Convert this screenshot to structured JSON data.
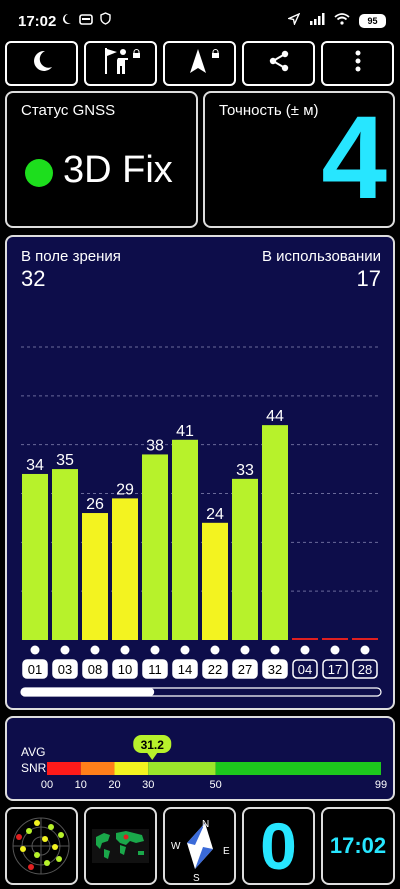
{
  "status_bar": {
    "time": "17:02",
    "battery": "95",
    "icons_left": [
      "moon-icon",
      "card-icon",
      "shield-icon"
    ],
    "icons_right": [
      "location-arrow-icon",
      "cell-signal-icon",
      "wifi-icon",
      "battery-icon"
    ]
  },
  "toolbar": {
    "buttons": [
      "night-mode",
      "navigate-person",
      "compass-arrow",
      "share",
      "menu"
    ]
  },
  "gnss": {
    "label": "Статус GNSS",
    "value": "3D Fix",
    "dot_color": "#1dde1d"
  },
  "accuracy": {
    "label": "Точность (± м)",
    "value": "4"
  },
  "sky": {
    "in_view_label": "В поле зрения",
    "in_view": "32",
    "in_use_label": "В использовании",
    "in_use": "17",
    "scroll_fraction": 0.37
  },
  "chart_data": {
    "type": "bar",
    "ylim": [
      0,
      60
    ],
    "grid": true,
    "categories": [
      "01",
      "03",
      "08",
      "10",
      "11",
      "14",
      "22",
      "27",
      "32",
      "04",
      "17",
      "28"
    ],
    "values": [
      34,
      35,
      26,
      29,
      38,
      41,
      24,
      33,
      44,
      0,
      0,
      0
    ],
    "value_labels": [
      "34",
      "35",
      "26",
      "29",
      "38",
      "41",
      "24",
      "33",
      "44",
      "",
      "",
      ""
    ],
    "colors": [
      "#b7f22b",
      "#b7f22b",
      "#f3f320",
      "#f3f320",
      "#b7f22b",
      "#b7f22b",
      "#f3f320",
      "#b7f22b",
      "#b7f22b",
      "#e02020",
      "#e02020",
      "#e02020"
    ],
    "in_use": [
      true,
      true,
      true,
      true,
      true,
      true,
      true,
      true,
      true,
      false,
      false,
      false
    ]
  },
  "snr": {
    "avg_label": "AVG",
    "snr_label": "SNR",
    "avg_value": "31.2",
    "avg": 31.2,
    "scale_ticks": [
      "00",
      "10",
      "20",
      "30",
      "50",
      "99"
    ],
    "segments": [
      {
        "from": 0,
        "to": 10,
        "color": "#ff1a1a"
      },
      {
        "from": 10,
        "to": 20,
        "color": "#ff7f1a"
      },
      {
        "from": 20,
        "to": 30,
        "color": "#f3f320"
      },
      {
        "from": 30,
        "to": 50,
        "color": "#9be62b"
      },
      {
        "from": 50,
        "to": 99,
        "color": "#1dc81d"
      }
    ]
  },
  "bottom_tiles": {
    "radar": "radar-icon",
    "map": "world-map-icon",
    "compass_letters": [
      "N",
      "E",
      "S",
      "W"
    ],
    "speed": "0",
    "clock": "17:02"
  }
}
